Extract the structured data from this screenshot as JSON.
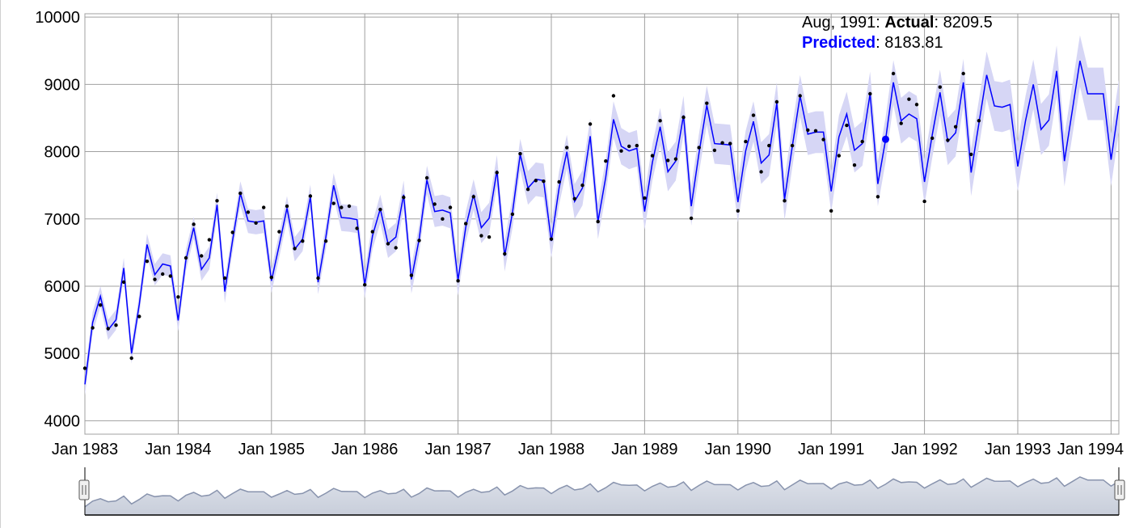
{
  "chart_data": {
    "type": "line",
    "title": "",
    "xlabel": "",
    "ylabel": "",
    "x_start": "1983-01",
    "x_end": "1994-02",
    "x_ticks": [
      "Jan 1983",
      "Jan 1984",
      "Jan 1985",
      "Jan 1986",
      "Jan 1987",
      "Jan 1988",
      "Jan 1989",
      "Jan 1990",
      "Jan 1991",
      "Jan 1992",
      "Jan 1993",
      "Jan 1994"
    ],
    "ylim": [
      3800,
      10050
    ],
    "y_ticks": [
      "4000",
      "5000",
      "6000",
      "7000",
      "8000",
      "9000",
      "10000"
    ],
    "grid": true,
    "colors": {
      "predicted": "#0000ff",
      "band": "#d6d6f5",
      "actual": "#000000",
      "grid": "#a0a0a0",
      "navigator_fill": "#c8ceda",
      "navigator_line": "#8893ad"
    },
    "series": [
      {
        "name": "Predicted",
        "values": [
          4540,
          5460,
          5850,
          5350,
          5500,
          6270,
          5000,
          5730,
          6620,
          6170,
          6330,
          6300,
          5490,
          6390,
          6870,
          6250,
          6420,
          7210,
          5920,
          6680,
          7380,
          6970,
          6950,
          6970,
          6080,
          6610,
          7160,
          6550,
          6700,
          7330,
          6060,
          6730,
          7500,
          7020,
          7010,
          6990,
          6020,
          6750,
          7150,
          6630,
          6730,
          7360,
          6100,
          6700,
          7580,
          7110,
          7130,
          7090,
          6090,
          6880,
          7360,
          6870,
          7010,
          7720,
          6450,
          7090,
          7960,
          7460,
          7590,
          7570,
          6670,
          7460,
          8000,
          7260,
          7460,
          8230,
          6960,
          7620,
          8480,
          8080,
          8010,
          8050,
          7110,
          7840,
          8370,
          7700,
          7860,
          8540,
          7190,
          7980,
          8690,
          8120,
          8110,
          8100,
          7250,
          8010,
          8450,
          7830,
          7950,
          8720,
          7290,
          8080,
          8830,
          8260,
          8290,
          8290,
          7410,
          8220,
          8560,
          8020,
          8120,
          8860,
          7520,
          8180,
          9030,
          8460,
          8560,
          8490,
          7550,
          8250,
          8880,
          8150,
          8280,
          9030,
          7690,
          8420,
          9140,
          8680,
          8660,
          8700,
          7780,
          8460,
          9000,
          8330,
          8470,
          9200,
          7860,
          8600,
          9350,
          8860,
          8860,
          8860,
          7880,
          8680
        ],
        "band_upper": [
          4700,
          5620,
          6000,
          5500,
          5650,
          6420,
          5150,
          5880,
          6780,
          6330,
          6490,
          6460,
          5650,
          6550,
          7030,
          6420,
          6590,
          7390,
          6090,
          6850,
          7560,
          7150,
          7130,
          7150,
          6260,
          6790,
          7340,
          6730,
          6880,
          7510,
          6240,
          6910,
          7680,
          7220,
          7210,
          7190,
          6220,
          6950,
          7360,
          6840,
          6940,
          7570,
          6310,
          6910,
          7790,
          7340,
          7360,
          7320,
          6320,
          7110,
          7590,
          7100,
          7240,
          7950,
          6680,
          7320,
          8190,
          7710,
          7840,
          7820,
          6920,
          7710,
          8250,
          7520,
          7720,
          8490,
          7220,
          7880,
          8750,
          8350,
          8280,
          8320,
          7380,
          8110,
          8650,
          7990,
          8150,
          8830,
          7480,
          8270,
          8980,
          8420,
          8410,
          8400,
          7550,
          8310,
          8750,
          8140,
          8260,
          9030,
          7600,
          8390,
          9140,
          8570,
          8600,
          8600,
          7720,
          8540,
          8890,
          8350,
          8450,
          9190,
          7850,
          8510,
          9360,
          8800,
          8900,
          8830,
          7890,
          8590,
          9220,
          8500,
          8630,
          9380,
          8040,
          8770,
          9490,
          9050,
          9030,
          9070,
          8150,
          8830,
          9370,
          8710,
          8850,
          9580,
          8240,
          8980,
          9730,
          9250,
          9250,
          9250,
          8270,
          9070
        ],
        "band_lower": [
          4380,
          5300,
          5700,
          5200,
          5350,
          6120,
          4850,
          5580,
          6460,
          6010,
          6170,
          6140,
          5330,
          6230,
          6710,
          6080,
          6250,
          7030,
          5750,
          6510,
          7200,
          6790,
          6770,
          6790,
          5900,
          6430,
          6980,
          6370,
          6520,
          7150,
          5880,
          6550,
          7320,
          6820,
          6810,
          6790,
          5820,
          6550,
          6940,
          6420,
          6520,
          7150,
          5890,
          6490,
          7370,
          6880,
          6900,
          6860,
          5860,
          6650,
          7130,
          6640,
          6780,
          7490,
          6220,
          6860,
          7730,
          7210,
          7340,
          7320,
          6420,
          7210,
          7750,
          7000,
          7200,
          7970,
          6700,
          7360,
          8210,
          7810,
          7740,
          7780,
          6840,
          7570,
          8090,
          7410,
          7570,
          8250,
          6900,
          7690,
          8400,
          7820,
          7810,
          7800,
          6950,
          7710,
          8150,
          7520,
          7640,
          8410,
          6980,
          7770,
          8520,
          7950,
          7980,
          7980,
          7100,
          7900,
          8230,
          7690,
          7790,
          8530,
          7190,
          7850,
          8700,
          8120,
          8220,
          8150,
          7210,
          7910,
          8540,
          7800,
          7930,
          8680,
          7340,
          8070,
          8790,
          8310,
          8290,
          8330,
          7410,
          8090,
          8630,
          7950,
          8090,
          8820,
          7480,
          8220,
          8970,
          8470,
          8470,
          8470,
          7490,
          8290
        ]
      },
      {
        "name": "Actual",
        "values": [
          4780,
          5380,
          5720,
          5370,
          5420,
          6060,
          4930,
          5550,
          6370,
          6100,
          6180,
          6150,
          5840,
          6420,
          6920,
          6450,
          6690,
          7270,
          6120,
          6800,
          7380,
          7100,
          6940,
          7170,
          6130,
          6810,
          7190,
          6560,
          6670,
          7340,
          6120,
          6670,
          7230,
          7170,
          7190,
          6860,
          6020,
          6810,
          7140,
          6630,
          6570,
          7320,
          6160,
          6680,
          7610,
          7220,
          7000,
          7170,
          6080,
          6930,
          7330,
          6750,
          6730,
          7690,
          6480,
          7070,
          7970,
          7440,
          7570,
          7560,
          6700,
          7550,
          8060,
          7300,
          7500,
          8410,
          6960,
          7860,
          8830,
          8010,
          8080,
          8090,
          7310,
          7940,
          8460,
          7870,
          7890,
          8510,
          7010,
          8060,
          8720,
          8020,
          8130,
          8120,
          7120,
          8150,
          8540,
          7700,
          8090,
          8740,
          7270,
          8090,
          8830,
          8320,
          8310,
          8180,
          7120,
          7940,
          8390,
          7800,
          8150,
          8860,
          7330,
          8209.5,
          9160,
          8420,
          8780,
          8700,
          7260,
          8200,
          8960,
          8170,
          8370,
          9160,
          7960,
          8460
        ]
      }
    ],
    "highlight": {
      "date_label": "Aug, 1991",
      "actual_label": "Actual",
      "actual_value": "8209.5",
      "predicted_label": "Predicted",
      "predicted_value": "8183.81",
      "index": 103
    }
  }
}
